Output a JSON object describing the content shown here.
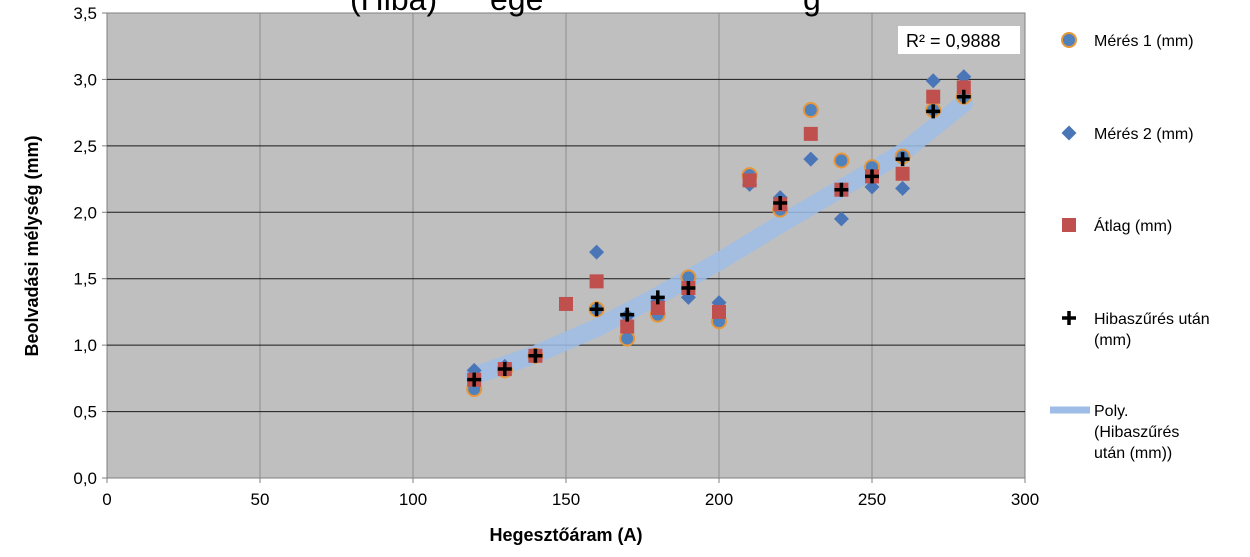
{
  "chart_data": {
    "type": "scatter",
    "title_fragment": "(Hibaszűrés) ... ege ... ség",
    "xlabel": "Hegesztőáram (A)",
    "ylabel": "Beolvadási mélység (mm)",
    "xlim": [
      0,
      300
    ],
    "ylim": [
      0,
      3.5
    ],
    "x_ticks": [
      "0",
      "50",
      "100",
      "150",
      "200",
      "250",
      "300"
    ],
    "y_ticks": [
      "0,0",
      "0,5",
      "1,0",
      "1,5",
      "2,0",
      "2,5",
      "3,0",
      "3,5"
    ],
    "grid": true,
    "legend_position": "right",
    "annotation": "R² = 0,9888",
    "series": [
      {
        "name": "Mérés 1 (mm)",
        "marker": "circle",
        "color": "#4f81bd",
        "edge_color": "#e8963a",
        "points": [
          [
            120,
            0.67
          ],
          [
            130,
            0.81
          ],
          [
            140,
            0.92
          ],
          [
            160,
            1.27
          ],
          [
            170,
            1.05
          ],
          [
            180,
            1.23
          ],
          [
            190,
            1.51
          ],
          [
            200,
            1.18
          ],
          [
            210,
            2.28
          ],
          [
            220,
            2.02
          ],
          [
            230,
            2.77
          ],
          [
            240,
            2.39
          ],
          [
            250,
            2.34
          ],
          [
            260,
            2.42
          ],
          [
            270,
            2.77
          ],
          [
            280,
            2.87
          ]
        ]
      },
      {
        "name": "Mérés 2 (mm)",
        "marker": "diamond",
        "color": "#4a76b8",
        "points": [
          [
            120,
            0.81
          ],
          [
            130,
            0.84
          ],
          [
            140,
            0.92
          ],
          [
            160,
            1.7
          ],
          [
            170,
            1.22
          ],
          [
            180,
            1.33
          ],
          [
            190,
            1.36
          ],
          [
            200,
            1.32
          ],
          [
            210,
            2.21
          ],
          [
            220,
            2.11
          ],
          [
            230,
            2.4
          ],
          [
            240,
            1.95
          ],
          [
            250,
            2.19
          ],
          [
            260,
            2.18
          ],
          [
            270,
            2.99
          ],
          [
            280,
            3.02
          ]
        ]
      },
      {
        "name": "Átlag (mm)",
        "marker": "square",
        "color": "#c0504d",
        "points": [
          [
            120,
            0.74
          ],
          [
            130,
            0.82
          ],
          [
            140,
            0.92
          ],
          [
            150,
            1.31
          ],
          [
            160,
            1.48
          ],
          [
            170,
            1.14
          ],
          [
            180,
            1.28
          ],
          [
            190,
            1.43
          ],
          [
            200,
            1.25
          ],
          [
            210,
            2.24
          ],
          [
            220,
            2.06
          ],
          [
            230,
            2.59
          ],
          [
            240,
            2.17
          ],
          [
            250,
            2.27
          ],
          [
            260,
            2.29
          ],
          [
            270,
            2.87
          ],
          [
            280,
            2.94
          ]
        ]
      },
      {
        "name": "Hibaszűrés után (mm)",
        "marker": "plus",
        "color": "#000000",
        "points": [
          [
            120,
            0.74
          ],
          [
            130,
            0.82
          ],
          [
            140,
            0.92
          ],
          [
            160,
            1.27
          ],
          [
            170,
            1.23
          ],
          [
            180,
            1.36
          ],
          [
            190,
            1.43
          ],
          [
            220,
            2.07
          ],
          [
            240,
            2.17
          ],
          [
            250,
            2.27
          ],
          [
            260,
            2.4
          ],
          [
            270,
            2.76
          ],
          [
            280,
            2.87
          ]
        ]
      }
    ],
    "trendline": {
      "name": "Poly. (Hibaszűrés után (mm))",
      "color": "#9dbde6",
      "points": [
        [
          120,
          0.77
        ],
        [
          140,
          0.93
        ],
        [
          160,
          1.13
        ],
        [
          180,
          1.37
        ],
        [
          200,
          1.63
        ],
        [
          220,
          1.91
        ],
        [
          240,
          2.18
        ],
        [
          260,
          2.45
        ],
        [
          280,
          2.82
        ]
      ]
    }
  }
}
